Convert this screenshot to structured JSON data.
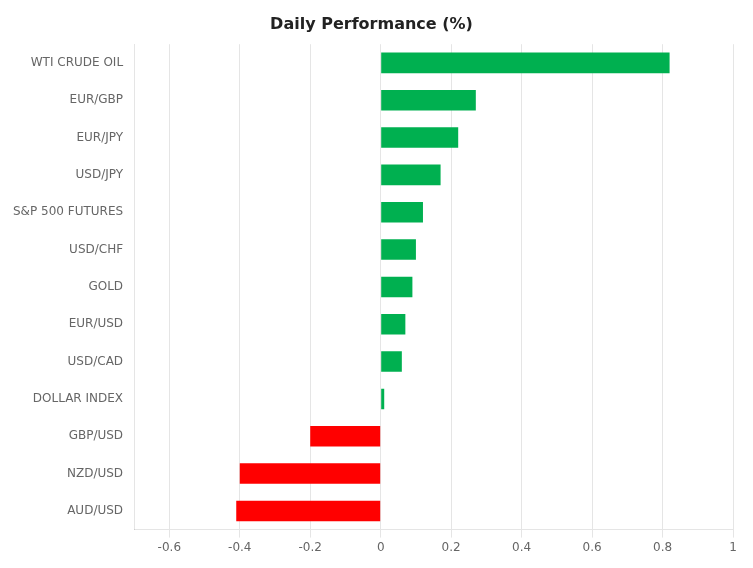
{
  "chart_data": {
    "type": "bar",
    "orientation": "horizontal",
    "title": "Daily Performance (%)",
    "categories": [
      "WTI CRUDE OIL",
      "EUR/GBP",
      "EUR/JPY",
      "USD/JPY",
      "S&P 500 FUTURES",
      "USD/CHF",
      "GOLD",
      "EUR/USD",
      "USD/CAD",
      "DOLLAR INDEX",
      "GBP/USD",
      "NZD/USD",
      "AUD/USD"
    ],
    "values": [
      0.82,
      0.27,
      0.22,
      0.17,
      0.12,
      0.1,
      0.09,
      0.07,
      0.06,
      0.01,
      -0.2,
      -0.4,
      -0.41
    ],
    "colors": [
      "#00b050",
      "#00b050",
      "#00b050",
      "#00b050",
      "#00b050",
      "#00b050",
      "#00b050",
      "#00b050",
      "#00b050",
      "#00b050",
      "#ff0000",
      "#ff0000",
      "#ff0000"
    ],
    "xlim": [
      -0.7,
      1.0
    ],
    "xticks": [
      -0.6,
      -0.4,
      -0.2,
      0,
      0.2,
      0.4,
      0.6,
      0.8,
      1
    ],
    "grid": true
  }
}
